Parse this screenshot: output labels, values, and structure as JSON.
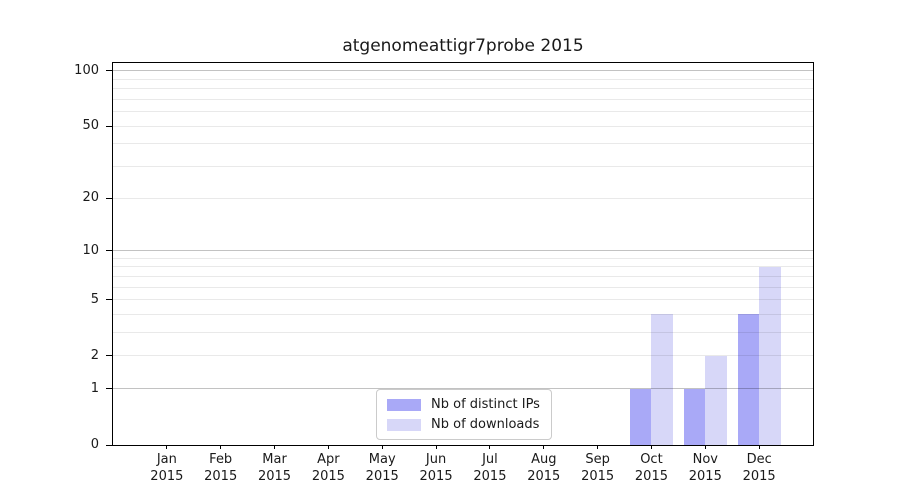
{
  "chart_data": {
    "type": "bar",
    "title": "atgenomeattigr7probe 2015",
    "x_categories": [
      "Jan",
      "Feb",
      "Mar",
      "Apr",
      "May",
      "Jun",
      "Jul",
      "Aug",
      "Sep",
      "Oct",
      "Nov",
      "Dec"
    ],
    "x_year": "2015",
    "y_scale": "log10(1+value)",
    "y_ticks": [
      100,
      50,
      20,
      10,
      5,
      2,
      1,
      0
    ],
    "y_major_gridlines": [
      1,
      10,
      100
    ],
    "y_minor_gridlines": [
      2,
      3,
      4,
      5,
      6,
      7,
      8,
      9,
      20,
      30,
      40,
      50,
      60,
      70,
      80,
      90
    ],
    "ylim": [
      0,
      110
    ],
    "grid": true,
    "legend_position": "inside bottom-center",
    "series": [
      {
        "name": "Nb of distinct IPs",
        "color": "#a9a9f7",
        "values": [
          0,
          0,
          0,
          0,
          0,
          0,
          0,
          0,
          0,
          1,
          1,
          4
        ]
      },
      {
        "name": "Nb of downloads",
        "color": "#d7d7f8",
        "values": [
          0,
          0,
          0,
          0,
          0,
          0,
          0,
          0,
          0,
          4,
          2,
          8
        ]
      }
    ]
  }
}
